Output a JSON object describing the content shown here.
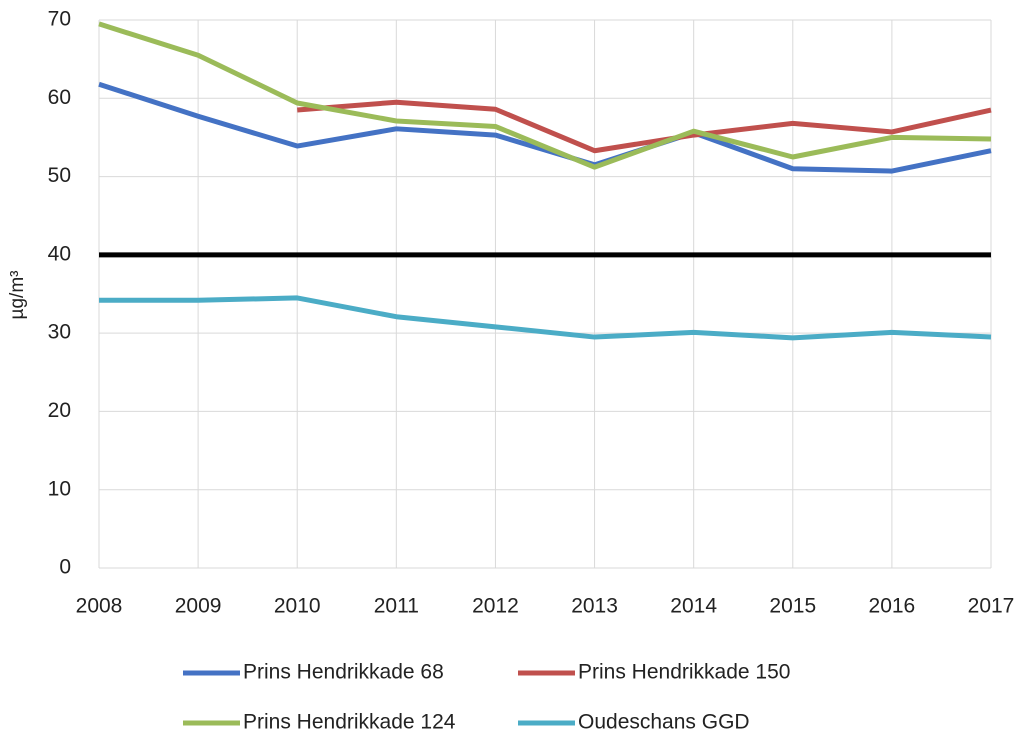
{
  "chart_data": {
    "type": "line",
    "y_label": "µg/m³",
    "categories": [
      "2008",
      "2009",
      "2010",
      "2011",
      "2012",
      "2013",
      "2014",
      "2015",
      "2016",
      "2017"
    ],
    "series": [
      {
        "name": "Prins Hendrikkade 68",
        "color": "#4472c4",
        "values": [
          61.8,
          57.7,
          53.9,
          56.1,
          55.3,
          51.5,
          55.6,
          51.0,
          50.7,
          53.3
        ]
      },
      {
        "name": "Prins Hendrikkade 150",
        "color": "#c0504d",
        "values": [
          null,
          null,
          58.5,
          59.5,
          58.6,
          53.3,
          55.3,
          56.8,
          55.7,
          58.5
        ]
      },
      {
        "name": "Prins Hendrikkade 124",
        "color": "#9bbb59",
        "values": [
          69.5,
          65.5,
          59.4,
          57.1,
          56.4,
          51.2,
          55.8,
          52.5,
          55.0,
          54.8
        ]
      },
      {
        "name": "Oudeschans GGD",
        "color": "#4bacc6",
        "values": [
          34.2,
          34.2,
          34.5,
          32.1,
          30.8,
          29.5,
          30.1,
          29.4,
          30.1,
          29.5
        ]
      }
    ],
    "reference_line": {
      "value": 40,
      "color": "#000000"
    },
    "ylim": [
      0,
      70
    ],
    "yticks": [
      0,
      10,
      20,
      30,
      40,
      50,
      60,
      70
    ],
    "grid": true,
    "legend": "bottom"
  }
}
